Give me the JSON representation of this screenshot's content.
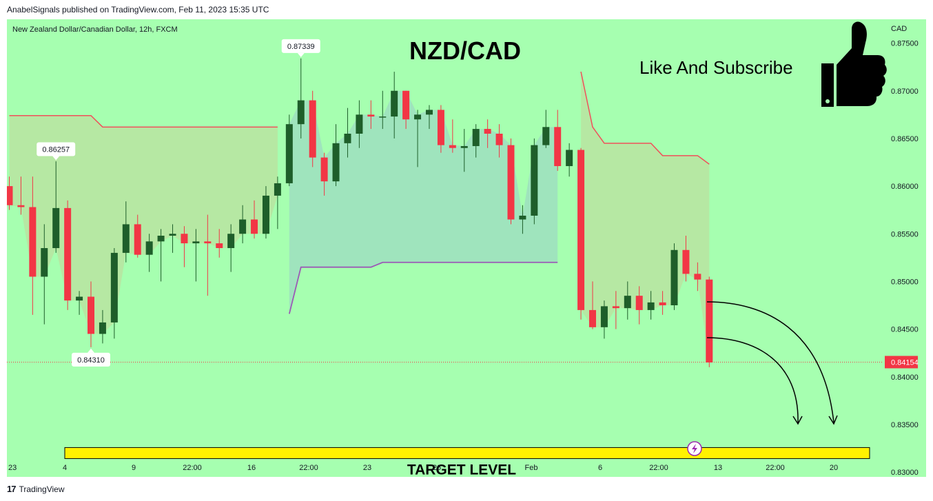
{
  "header": {
    "published_by": "AnabelSignals published on TradingView.com, Feb 11, 2023 15:35 UTC"
  },
  "footer": {
    "logo": "17",
    "brand": "TradingView"
  },
  "colors": {
    "background": "#a6ffb0",
    "bull": "#1e5e2a",
    "bear": "#f23645",
    "upper_band": "#f0505a",
    "lower_band": "#9b59b6",
    "target_bar": "#fff200",
    "price_label": "#f23645"
  },
  "icons": {
    "thumbs_up": "thumbs-up-icon",
    "lightning": "lightning-icon"
  },
  "chart_data": {
    "type": "candlestick",
    "symbol": "New Zealand Dollar/Canadian Dollar, 12h, FXCM",
    "title": "NZD/CAD",
    "currency": "CAD",
    "call_to_action": "Like And Subscribe",
    "target_label": "TARGET LEVEL",
    "target_value": 0.832,
    "current_price": "0.84154",
    "ylim": [
      0.8295,
      0.8775
    ],
    "y_ticks": [
      "0.87500",
      "0.87000",
      "0.86500",
      "0.86000",
      "0.85500",
      "0.85000",
      "0.84500",
      "0.84000",
      "0.83500",
      "0.83000"
    ],
    "x_ticks": [
      "23",
      "4",
      "9",
      "22:00",
      "16",
      "22:00",
      "23",
      "26",
      "Feb",
      "6",
      "22:00",
      "13",
      "22:00",
      "20"
    ],
    "annotations": [
      {
        "label": "0.86257",
        "value": 0.86257,
        "bar": 4,
        "side": "above"
      },
      {
        "label": "0.84310",
        "value": 0.8431,
        "bar": 7,
        "side": "below"
      },
      {
        "label": "0.87339",
        "value": 0.87339,
        "bar": 25,
        "side": "above"
      }
    ],
    "candles": [
      [
        0.86,
        0.861,
        0.8575,
        0.858
      ],
      [
        0.858,
        0.861,
        0.857,
        0.8578
      ],
      [
        0.8578,
        0.861,
        0.8465,
        0.8505
      ],
      [
        0.8505,
        0.856,
        0.8455,
        0.8535
      ],
      [
        0.8535,
        0.8626,
        0.853,
        0.8577
      ],
      [
        0.8577,
        0.8585,
        0.847,
        0.848
      ],
      [
        0.848,
        0.849,
        0.8465,
        0.8484
      ],
      [
        0.8484,
        0.85,
        0.8431,
        0.8445
      ],
      [
        0.8445,
        0.847,
        0.8435,
        0.8457
      ],
      [
        0.8457,
        0.8535,
        0.844,
        0.853
      ],
      [
        0.853,
        0.8584,
        0.852,
        0.856
      ],
      [
        0.856,
        0.857,
        0.8525,
        0.8528
      ],
      [
        0.8528,
        0.855,
        0.851,
        0.8542
      ],
      [
        0.8542,
        0.8555,
        0.85,
        0.8548
      ],
      [
        0.8548,
        0.856,
        0.853,
        0.855
      ],
      [
        0.855,
        0.8558,
        0.8515,
        0.854
      ],
      [
        0.854,
        0.8555,
        0.85,
        0.8542
      ],
      [
        0.8542,
        0.857,
        0.8485,
        0.854
      ],
      [
        0.854,
        0.8555,
        0.8525,
        0.8535
      ],
      [
        0.8535,
        0.856,
        0.851,
        0.855
      ],
      [
        0.855,
        0.858,
        0.854,
        0.8565
      ],
      [
        0.8565,
        0.8585,
        0.8545,
        0.855
      ],
      [
        0.855,
        0.86,
        0.8545,
        0.859
      ],
      [
        0.859,
        0.861,
        0.8555,
        0.8603
      ],
      [
        0.8603,
        0.8675,
        0.86,
        0.8665
      ],
      [
        0.8665,
        0.8734,
        0.865,
        0.869
      ],
      [
        0.869,
        0.87,
        0.862,
        0.863
      ],
      [
        0.863,
        0.8635,
        0.859,
        0.8605
      ],
      [
        0.8605,
        0.8665,
        0.86,
        0.8645
      ],
      [
        0.8645,
        0.8682,
        0.863,
        0.8655
      ],
      [
        0.8655,
        0.869,
        0.864,
        0.8675
      ],
      [
        0.8675,
        0.869,
        0.866,
        0.8673
      ],
      [
        0.8673,
        0.87,
        0.866,
        0.8673
      ],
      [
        0.8673,
        0.872,
        0.865,
        0.87
      ],
      [
        0.87,
        0.87,
        0.866,
        0.867
      ],
      [
        0.867,
        0.868,
        0.862,
        0.8675
      ],
      [
        0.8675,
        0.8685,
        0.866,
        0.868
      ],
      [
        0.868,
        0.8685,
        0.8635,
        0.8643
      ],
      [
        0.8643,
        0.867,
        0.8635,
        0.864
      ],
      [
        0.864,
        0.866,
        0.8615,
        0.8642
      ],
      [
        0.8642,
        0.8665,
        0.863,
        0.866
      ],
      [
        0.866,
        0.867,
        0.864,
        0.8655
      ],
      [
        0.8655,
        0.8665,
        0.863,
        0.8643
      ],
      [
        0.8643,
        0.865,
        0.856,
        0.8565
      ],
      [
        0.8565,
        0.858,
        0.855,
        0.8569
      ],
      [
        0.8569,
        0.865,
        0.856,
        0.8643
      ],
      [
        0.8643,
        0.868,
        0.864,
        0.8662
      ],
      [
        0.8662,
        0.868,
        0.8616,
        0.8621
      ],
      [
        0.8621,
        0.8645,
        0.861,
        0.8638
      ],
      [
        0.8638,
        0.864,
        0.846,
        0.847
      ],
      [
        0.847,
        0.85,
        0.845,
        0.8452
      ],
      [
        0.8452,
        0.848,
        0.844,
        0.8474
      ],
      [
        0.8474,
        0.849,
        0.845,
        0.8472
      ],
      [
        0.8472,
        0.85,
        0.846,
        0.8485
      ],
      [
        0.8485,
        0.8495,
        0.8455,
        0.847
      ],
      [
        0.847,
        0.849,
        0.846,
        0.8478
      ],
      [
        0.8478,
        0.849,
        0.8465,
        0.8475
      ],
      [
        0.8475,
        0.854,
        0.847,
        0.8533
      ],
      [
        0.8533,
        0.8548,
        0.85,
        0.8508
      ],
      [
        0.8508,
        0.852,
        0.849,
        0.8502
      ],
      [
        0.8502,
        0.8505,
        0.841,
        0.8415
      ]
    ],
    "upper_band": [
      [
        0,
        0.8674
      ],
      [
        7,
        0.8674
      ],
      [
        8,
        0.8662
      ],
      [
        23,
        0.8662
      ],
      [
        49,
        0.872
      ],
      [
        50,
        0.8662
      ],
      [
        51,
        0.8645
      ],
      [
        55,
        0.8645
      ],
      [
        56,
        0.8632
      ],
      [
        59,
        0.8632
      ],
      [
        60,
        0.8623
      ]
    ],
    "lower_band": [
      [
        24,
        0.8466
      ],
      [
        25,
        0.8515
      ],
      [
        31,
        0.8515
      ],
      [
        32,
        0.852
      ],
      [
        47,
        0.852
      ]
    ]
  }
}
